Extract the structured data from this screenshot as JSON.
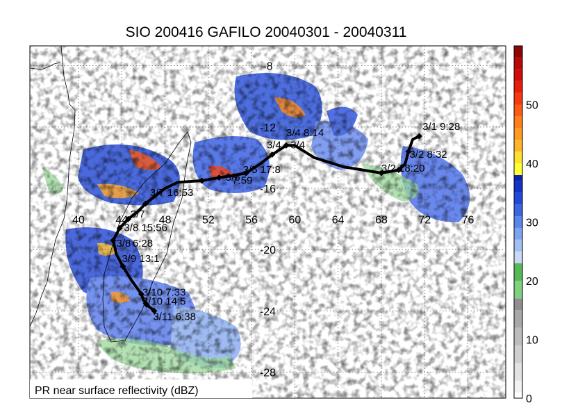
{
  "chart_data": {
    "type": "map",
    "title": "SIO 200416 GAFILO 20040301 - 20040311",
    "caption": "PR near surface reflectivity (dBZ)",
    "lon_range": [
      35.5,
      79.5
    ],
    "lat_range": [
      -6.7,
      -29.7
    ],
    "lon_ticks": [
      40,
      44,
      48,
      52,
      56,
      60,
      64,
      68,
      72,
      76
    ],
    "lat_ticks": [
      -8,
      -12,
      -16,
      -20,
      -24,
      -28
    ],
    "grid": "dotted",
    "colorbar": {
      "min": 0,
      "max": 60,
      "labels": [
        "0",
        "10",
        "20",
        "30",
        "40",
        "50"
      ],
      "label_values": [
        0,
        10,
        20,
        30,
        40,
        50
      ]
    },
    "track": [
      {
        "lon": 71.5,
        "lat": -12.6
      },
      {
        "lon": 70.9,
        "lat": -12.8
      },
      {
        "lon": 70.5,
        "lat": -13.6
      },
      {
        "lon": 70.2,
        "lat": -14.4
      },
      {
        "lon": 69.6,
        "lat": -14.8
      },
      {
        "lon": 68.0,
        "lat": -15.0
      },
      {
        "lon": 64.5,
        "lat": -14.6
      },
      {
        "lon": 61.8,
        "lat": -14.0
      },
      {
        "lon": 60.0,
        "lat": -13.2
      },
      {
        "lon": 59.2,
        "lat": -13.2
      },
      {
        "lon": 57.9,
        "lat": -13.8
      },
      {
        "lon": 56.8,
        "lat": -14.4
      },
      {
        "lon": 55.5,
        "lat": -15.0
      },
      {
        "lon": 54.0,
        "lat": -15.2
      },
      {
        "lon": 53.0,
        "lat": -15.3
      },
      {
        "lon": 51.4,
        "lat": -15.5
      },
      {
        "lon": 49.2,
        "lat": -15.6
      },
      {
        "lon": 48.0,
        "lat": -16.0
      },
      {
        "lon": 46.2,
        "lat": -17.0
      },
      {
        "lon": 45.5,
        "lat": -17.5
      },
      {
        "lon": 44.6,
        "lat": -18.0
      },
      {
        "lon": 43.8,
        "lat": -18.6
      },
      {
        "lon": 43.2,
        "lat": -19.4
      },
      {
        "lon": 43.5,
        "lat": -20.3
      },
      {
        "lon": 44.1,
        "lat": -21.1
      },
      {
        "lon": 44.9,
        "lat": -22.0
      },
      {
        "lon": 45.8,
        "lat": -22.9
      },
      {
        "lon": 46.0,
        "lat": -23.3
      },
      {
        "lon": 46.3,
        "lat": -23.6
      },
      {
        "lon": 47.0,
        "lat": -24.0
      }
    ],
    "track_markers": [
      {
        "lon": 71.5,
        "lat": -12.6
      },
      {
        "lon": 70.5,
        "lat": -13.6
      },
      {
        "lon": 69.6,
        "lat": -14.8
      },
      {
        "lon": 68.0,
        "lat": -15.0
      },
      {
        "lon": 59.2,
        "lat": -13.2
      },
      {
        "lon": 57.9,
        "lat": -13.8
      },
      {
        "lon": 55.5,
        "lat": -15.0
      },
      {
        "lon": 53.0,
        "lat": -15.3
      },
      {
        "lon": 51.4,
        "lat": -15.5
      },
      {
        "lon": 46.2,
        "lat": -17.0
      },
      {
        "lon": 44.6,
        "lat": -18.0
      },
      {
        "lon": 43.8,
        "lat": -18.6
      },
      {
        "lon": 43.2,
        "lat": -19.4
      },
      {
        "lon": 44.1,
        "lat": -21.1
      },
      {
        "lon": 45.8,
        "lat": -22.9
      },
      {
        "lon": 46.3,
        "lat": -23.6
      },
      {
        "lon": 47.0,
        "lat": -24.0
      }
    ],
    "annotations": [
      {
        "text": "3/1 9:28",
        "lon": 71.8,
        "lat": -12.2
      },
      {
        "text": "3/2 8:32",
        "lon": 70.6,
        "lat": -14.0
      },
      {
        "text": "3/2 18:20",
        "lon": 68.0,
        "lat": -14.9
      },
      {
        "text": "3/4 8:14",
        "lon": 59.2,
        "lat": -12.6
      },
      {
        "text": "3/4",
        "lon": 59.6,
        "lat": -13.4
      },
      {
        "text": "3/4",
        "lon": 57.4,
        "lat": -13.4
      },
      {
        "text": "3/5 17:8",
        "lon": 55.2,
        "lat": -15.0
      },
      {
        "text": "3/6",
        "lon": 53.6,
        "lat": -15.5
      },
      {
        "text": "7:59",
        "lon": 54.2,
        "lat": -15.7
      },
      {
        "text": "3/7 16:53",
        "lon": 46.6,
        "lat": -16.5
      },
      {
        "text": "3/7",
        "lon": 44.8,
        "lat": -17.9
      },
      {
        "text": "3/8 15:56",
        "lon": 44.2,
        "lat": -18.8
      },
      {
        "text": "3/8",
        "lon": 43.5,
        "lat": -19.8
      },
      {
        "text": "6:28",
        "lon": 45.0,
        "lat": -19.8
      },
      {
        "text": "3/9 13:1",
        "lon": 44.0,
        "lat": -20.8
      },
      {
        "text": "3/10 7:33",
        "lon": 45.9,
        "lat": -23.0
      },
      {
        "text": "3/10 14:5",
        "lon": 45.9,
        "lat": -23.6
      },
      {
        "text": "3/11 6:38",
        "lon": 46.9,
        "lat": -24.6
      }
    ]
  }
}
